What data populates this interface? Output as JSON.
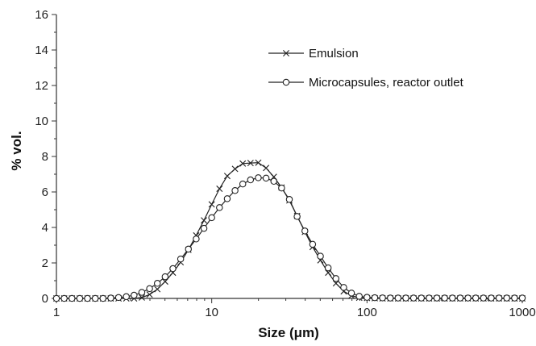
{
  "chart_data": {
    "type": "line",
    "xscale": "log",
    "xlim": [
      1,
      1000
    ],
    "ylim": [
      0,
      16
    ],
    "xlabel": "Size (μm)",
    "ylabel": "% vol.",
    "x_ticks": [
      1,
      10,
      100,
      1000
    ],
    "x_tick_labels": [
      "1",
      "10",
      "100",
      "1000"
    ],
    "y_ticks": [
      0,
      2,
      4,
      6,
      8,
      10,
      12,
      14,
      16
    ],
    "y_tick_labels": [
      "0",
      "2",
      "4",
      "6",
      "8",
      "10",
      "12",
      "14",
      "16"
    ],
    "grid": false,
    "legend_position": "top-right",
    "colors": {
      "line": "#222222",
      "axis": "#333333"
    },
    "x": [
      1.0,
      1.122,
      1.259,
      1.413,
      1.585,
      1.778,
      1.995,
      2.239,
      2.512,
      2.818,
      3.162,
      3.548,
      3.981,
      4.467,
      5.012,
      5.623,
      6.31,
      7.079,
      7.943,
      8.913,
      10.0,
      11.22,
      12.59,
      14.13,
      15.85,
      17.78,
      19.95,
      22.39,
      25.12,
      28.18,
      31.62,
      35.48,
      39.81,
      44.67,
      50.12,
      56.23,
      63.1,
      70.79,
      79.43,
      89.13,
      100.0,
      112.2,
      125.9,
      141.3,
      158.5,
      177.8,
      199.5,
      223.9,
      251.2,
      281.8,
      316.2,
      354.8,
      398.1,
      446.7,
      501.2,
      562.3,
      631.0,
      707.9,
      794.3,
      891.3,
      1000.0
    ],
    "series": [
      {
        "name": "Emulsion",
        "marker": "x",
        "values": [
          0,
          0,
          0,
          0,
          0,
          0,
          0,
          0,
          0,
          0,
          0,
          0.05,
          0.22,
          0.52,
          0.95,
          1.45,
          2.04,
          2.74,
          3.55,
          4.4,
          5.3,
          6.18,
          6.9,
          7.3,
          7.6,
          7.63,
          7.65,
          7.35,
          6.85,
          6.25,
          5.52,
          4.65,
          3.75,
          2.9,
          2.15,
          1.45,
          0.85,
          0.4,
          0.15,
          0.04,
          0.02,
          0.01,
          0,
          0,
          0,
          0,
          0,
          0,
          0,
          0,
          0,
          0,
          0,
          0,
          0,
          0,
          0,
          0,
          0,
          0,
          0
        ]
      },
      {
        "name": "Microcapsules, reactor outlet",
        "marker": "o",
        "values": [
          0,
          0,
          0,
          0,
          0,
          0,
          0,
          0.02,
          0.05,
          0.1,
          0.18,
          0.34,
          0.55,
          0.85,
          1.22,
          1.68,
          2.22,
          2.78,
          3.35,
          3.95,
          4.55,
          5.12,
          5.62,
          6.08,
          6.45,
          6.68,
          6.8,
          6.78,
          6.6,
          6.22,
          5.58,
          4.62,
          3.8,
          3.05,
          2.38,
          1.72,
          1.12,
          0.62,
          0.3,
          0.12,
          0.06,
          0.04,
          0.03,
          0.02,
          0.02,
          0.02,
          0.02,
          0.02,
          0.02,
          0.02,
          0.02,
          0.02,
          0.02,
          0.02,
          0.02,
          0.02,
          0.02,
          0.02,
          0.02,
          0.02,
          0.02
        ]
      }
    ]
  }
}
